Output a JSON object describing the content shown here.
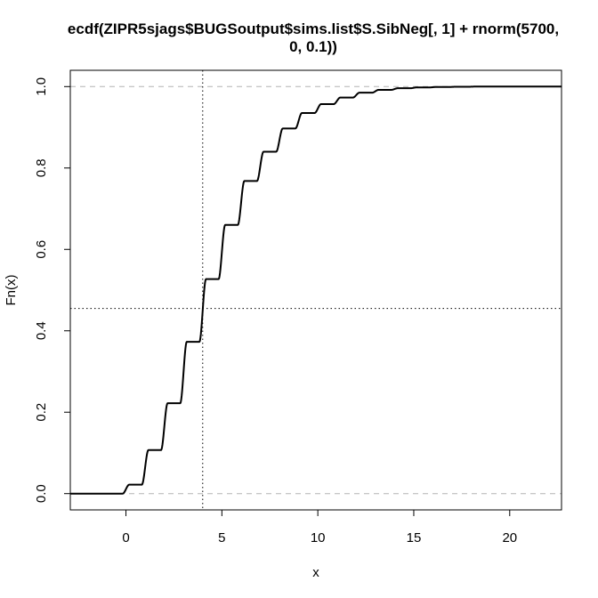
{
  "chart_data": {
    "type": "line",
    "title_lines": [
      "ecdf(ZIPR5sjags$BUGSoutput$sims.list$S.SibNeg[, 1] + rnorm(5700,",
      "0, 0.1))"
    ],
    "xlabel": "x",
    "ylabel": "Fn(x)",
    "xlim": [
      -2.9,
      22.7
    ],
    "ylim": [
      -0.04,
      1.04
    ],
    "x_ticks": [
      0,
      5,
      10,
      15,
      20
    ],
    "x_tick_labels": [
      "0",
      "5",
      "10",
      "15",
      "20"
    ],
    "y_ticks": [
      0.0,
      0.2,
      0.4,
      0.6,
      0.8,
      1.0
    ],
    "y_tick_labels": [
      "0.0",
      "0.2",
      "0.4",
      "0.6",
      "0.8",
      "1.0"
    ],
    "horizontal_dashed_lines": [
      0,
      1
    ],
    "reference_lines": {
      "x": 4,
      "y": 0.455
    },
    "steps": [
      {
        "at": 0,
        "level": 0.022
      },
      {
        "at": 1,
        "level": 0.107
      },
      {
        "at": 2,
        "level": 0.222
      },
      {
        "at": 3,
        "level": 0.373
      },
      {
        "at": 4,
        "level": 0.527
      },
      {
        "at": 5,
        "level": 0.66
      },
      {
        "at": 6,
        "level": 0.768
      },
      {
        "at": 7,
        "level": 0.84
      },
      {
        "at": 8,
        "level": 0.897
      },
      {
        "at": 9,
        "level": 0.935
      },
      {
        "at": 10,
        "level": 0.957
      },
      {
        "at": 11,
        "level": 0.973
      },
      {
        "at": 12,
        "level": 0.985
      },
      {
        "at": 13,
        "level": 0.992
      },
      {
        "at": 14,
        "level": 0.996
      },
      {
        "at": 15,
        "level": 0.998
      },
      {
        "at": 16,
        "level": 0.999
      },
      {
        "at": 17,
        "level": 0.9995
      },
      {
        "at": 18,
        "level": 1.0
      }
    ],
    "x_start": -2.9,
    "x_end": 22.7,
    "grid": false,
    "line_color": "#000000",
    "dashed_line_color": "#b3b3b3"
  }
}
